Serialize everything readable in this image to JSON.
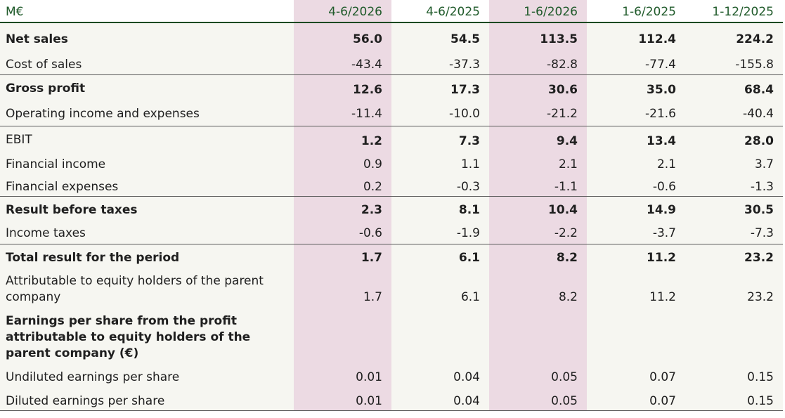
{
  "header": {
    "unit": "M€",
    "columns": [
      "4-6/2026",
      "4-6/2025",
      "1-6/2026",
      "1-6/2025",
      "1-12/2025"
    ]
  },
  "rows": [
    {
      "label": "Net sales",
      "values": [
        "56.0",
        "54.5",
        "113.5",
        "112.4",
        "224.2"
      ]
    },
    {
      "label": "Cost of sales",
      "values": [
        "-43.4",
        "-37.3",
        "-82.8",
        "-77.4",
        "-155.8"
      ]
    },
    {
      "label": "Gross profit",
      "values": [
        "12.6",
        "17.3",
        "30.6",
        "35.0",
        "68.4"
      ]
    },
    {
      "label": "Operating income and expenses",
      "values": [
        "-11.4",
        "-10.0",
        "-21.2",
        "-21.6",
        "-40.4"
      ]
    },
    {
      "label": "EBIT",
      "values": [
        "1.2",
        "7.3",
        "9.4",
        "13.4",
        "28.0"
      ]
    },
    {
      "label": "Financial income",
      "values": [
        "0.9",
        "1.1",
        "2.1",
        "2.1",
        "3.7"
      ]
    },
    {
      "label": "Financial expenses",
      "values": [
        "0.2",
        "-0.3",
        "-1.1",
        "-0.6",
        "-1.3"
      ]
    },
    {
      "label": "Result before taxes",
      "values": [
        "2.3",
        "8.1",
        "10.4",
        "14.9",
        "30.5"
      ]
    },
    {
      "label": "Income taxes",
      "values": [
        "-0.6",
        "-1.9",
        "-2.2",
        "-3.7",
        "-7.3"
      ]
    },
    {
      "label": "Total result for the period",
      "values": [
        "1.7",
        "6.1",
        "8.2",
        "11.2",
        "23.2"
      ]
    },
    {
      "label": "Attributable to equity holders of the parent company",
      "values": [
        "1.7",
        "6.1",
        "8.2",
        "11.2",
        "23.2"
      ]
    },
    {
      "label": "Earnings per share from the profit attributable to equity holders of the parent company (€)",
      "values": [
        "",
        "",
        "",
        "",
        ""
      ]
    },
    {
      "label": "Undiluted earnings per share",
      "values": [
        "0.01",
        "0.04",
        "0.05",
        "0.07",
        "0.15"
      ]
    },
    {
      "label": "Diluted earnings per share",
      "values": [
        "0.01",
        "0.04",
        "0.05",
        "0.07",
        "0.15"
      ]
    }
  ],
  "colors": {
    "highlight_column": "#ecdae3",
    "row_background": "#f6f6f1",
    "header_text": "#1f5a2a",
    "rule": "#1c4a22"
  }
}
